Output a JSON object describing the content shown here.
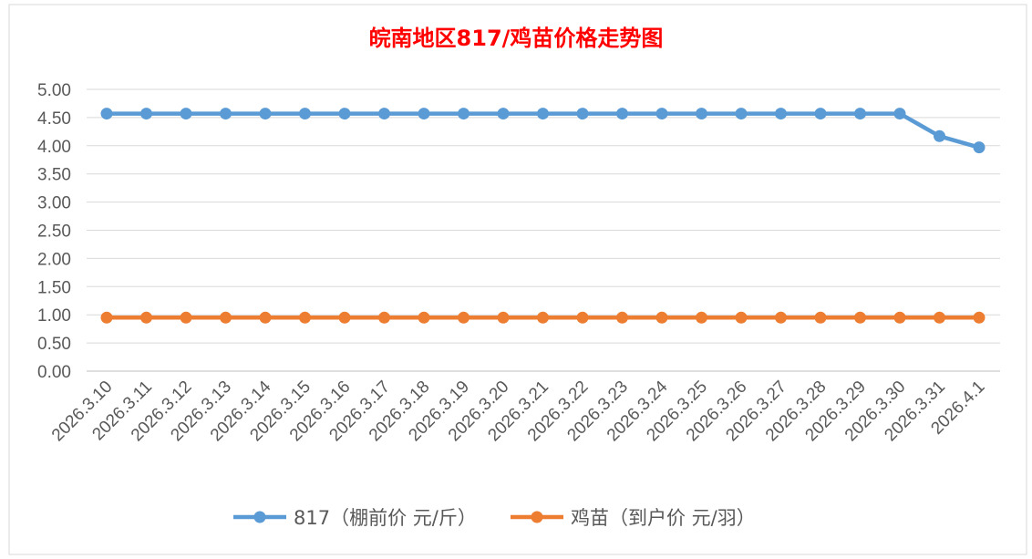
{
  "chart_data": {
    "type": "line",
    "title": "皖南地区817/鸡苗价格走势图",
    "categories": [
      "2026.3.10",
      "2026.3.11",
      "2026.3.12",
      "2026.3.13",
      "2026.3.14",
      "2026.3.15",
      "2026.3.16",
      "2026.3.17",
      "2026.3.18",
      "2026.3.19",
      "2026.3.20",
      "2026.3.21",
      "2026.3.22",
      "2026.3.23",
      "2026.3.24",
      "2026.3.25",
      "2026.3.26",
      "2026.3.27",
      "2026.3.28",
      "2026.3.29",
      "2026.3.30",
      "2026.3.31",
      "2026.4.1"
    ],
    "series": [
      {
        "name": "817（棚前价 元/斤）",
        "color": "#5B9BD5",
        "values": [
          4.57,
          4.57,
          4.57,
          4.57,
          4.57,
          4.57,
          4.57,
          4.57,
          4.57,
          4.57,
          4.57,
          4.57,
          4.57,
          4.57,
          4.57,
          4.57,
          4.57,
          4.57,
          4.57,
          4.57,
          4.57,
          4.17,
          3.97
        ]
      },
      {
        "name": "鸡苗（到户价 元/羽）",
        "color": "#ED7D31",
        "values": [
          0.95,
          0.95,
          0.95,
          0.95,
          0.95,
          0.95,
          0.95,
          0.95,
          0.95,
          0.95,
          0.95,
          0.95,
          0.95,
          0.95,
          0.95,
          0.95,
          0.95,
          0.95,
          0.95,
          0.95,
          0.95,
          0.95,
          0.95
        ]
      }
    ],
    "ylim": [
      0,
      5
    ],
    "yticks": [
      "0.00",
      "0.50",
      "1.00",
      "1.50",
      "2.00",
      "2.50",
      "3.00",
      "3.50",
      "4.00",
      "4.50",
      "5.00"
    ],
    "grid": true,
    "legend_position": "bottom",
    "title_color": "#FF0000"
  }
}
